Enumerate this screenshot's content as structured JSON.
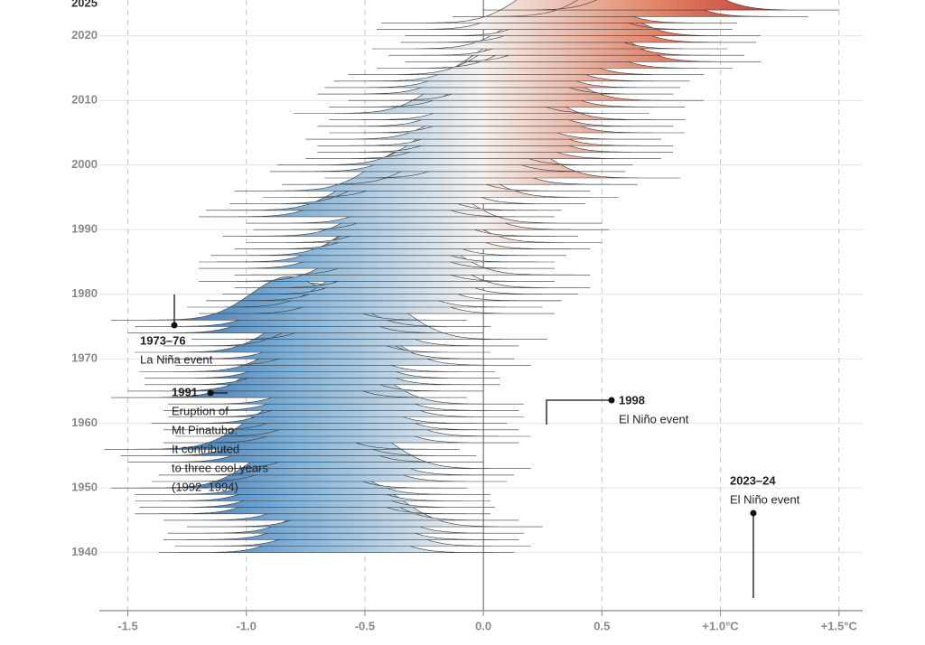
{
  "chart_data": {
    "type": "ridgeline",
    "categories": [
      1940,
      1941,
      1942,
      1943,
      1944,
      1945,
      1946,
      1947,
      1948,
      1949,
      1950,
      1951,
      1952,
      1953,
      1954,
      1955,
      1956,
      1957,
      1958,
      1959,
      1960,
      1961,
      1962,
      1963,
      1964,
      1965,
      1966,
      1967,
      1968,
      1969,
      1970,
      1971,
      1972,
      1973,
      1974,
      1975,
      1976,
      1977,
      1978,
      1979,
      1980,
      1981,
      1982,
      1983,
      1984,
      1985,
      1986,
      1987,
      1988,
      1989,
      1990,
      1991,
      1992,
      1993,
      1994,
      1995,
      1996,
      1997,
      1998,
      1999,
      2000,
      2001,
      2002,
      2003,
      2004,
      2005,
      2006,
      2007,
      2008,
      2009,
      2010,
      2011,
      2012,
      2013,
      2014,
      2015,
      2016,
      2017,
      2018,
      2019,
      2020,
      2021,
      2022,
      2023,
      2024
    ],
    "values": [
      -0.62,
      -0.55,
      -0.6,
      -0.58,
      -0.5,
      -0.6,
      -0.72,
      -0.7,
      -0.72,
      -0.72,
      -0.82,
      -0.65,
      -0.62,
      -0.55,
      -0.75,
      -0.78,
      -0.85,
      -0.6,
      -0.55,
      -0.6,
      -0.65,
      -0.58,
      -0.6,
      -0.58,
      -0.82,
      -0.75,
      -0.68,
      -0.68,
      -0.7,
      -0.55,
      -0.62,
      -0.72,
      -0.6,
      -0.48,
      -0.75,
      -0.72,
      -0.82,
      -0.45,
      -0.5,
      -0.42,
      -0.35,
      -0.3,
      -0.45,
      -0.3,
      -0.45,
      -0.45,
      -0.4,
      -0.3,
      -0.25,
      -0.35,
      -0.22,
      -0.25,
      -0.45,
      -0.42,
      -0.32,
      -0.18,
      -0.3,
      -0.1,
      0.08,
      -0.15,
      -0.12,
      0.0,
      0.05,
      0.05,
      0.0,
      0.1,
      0.05,
      0.1,
      -0.05,
      0.1,
      0.18,
      0.05,
      0.08,
      0.12,
      0.18,
      0.3,
      0.42,
      0.35,
      0.28,
      0.4,
      0.42,
      0.3,
      0.32,
      0.62,
      0.75
    ],
    "colors": [
      "#1b5799",
      "#7db0d8",
      "#f5f3f1",
      "#e07b5e",
      "#a30d1f"
    ],
    "xlim": [
      -1.62,
      1.6
    ],
    "xticks": [
      -1.5,
      {
        "value": -1.0,
        "label": "-1.0"
      },
      -0.5,
      {
        "value": 0.0,
        "label": "0.0"
      },
      0.5,
      {
        "value": 1.0,
        "label": "+1.0°C"
      },
      {
        "value": 1.5,
        "label": "+1.5°C"
      }
    ],
    "ylim": [
      1931,
      2025
    ],
    "yticks": [
      1940,
      1950,
      1960,
      1970,
      1980,
      1990,
      2000,
      2010,
      2020,
      2025
    ],
    "grid": true,
    "annotations": [
      {
        "label": "1973–76",
        "lines": [
          "La Niña event"
        ]
      },
      {
        "label": "1991",
        "lines": [
          "Eruption of",
          "Mt Pinatubo.",
          "It contributed",
          "to three cool years",
          "(1992–1994)"
        ]
      },
      {
        "label": "1998",
        "lines": [
          "El Niño event"
        ]
      },
      {
        "label": "2023–24",
        "lines": [
          "El Niño event"
        ]
      }
    ]
  }
}
